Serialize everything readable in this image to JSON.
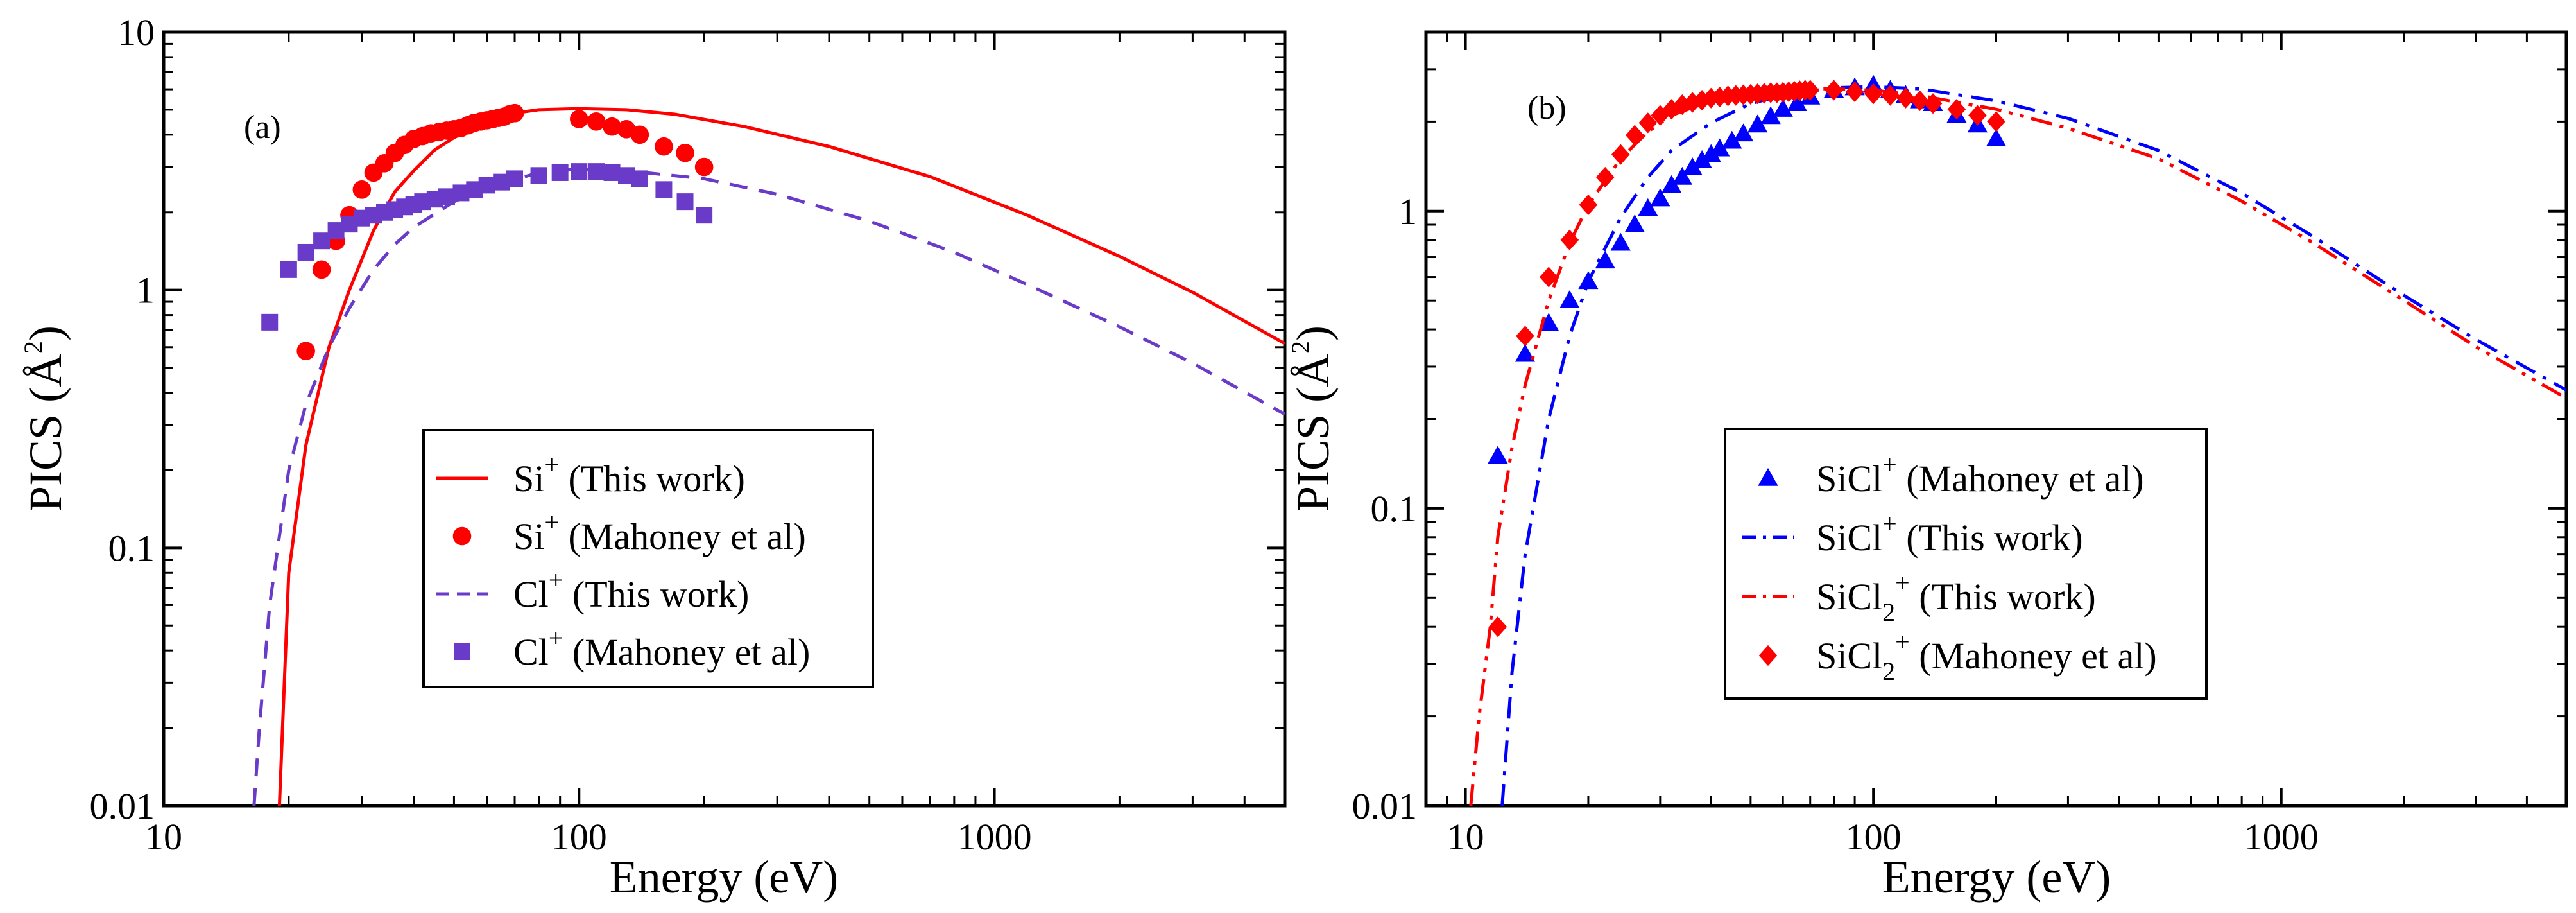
{
  "chart_data": [
    {
      "type": "line",
      "panel_label": "(a)",
      "xlabel": "Energy (eV)",
      "ylabel": "PICS (Å",
      "ylabel_sup": "2",
      "ylabel_close": ")",
      "xscale": "log",
      "yscale": "log",
      "xlim": [
        10,
        5000
      ],
      "ylim": [
        0.01,
        10
      ],
      "x_ticks": [
        10,
        100,
        1000
      ],
      "x_tick_labels": [
        "10",
        "100",
        "1000"
      ],
      "y_ticks": [
        0.01,
        0.1,
        1,
        10
      ],
      "y_tick_labels": [
        "0.01",
        "0.1",
        "1",
        "10"
      ],
      "legend_position": "center",
      "series": [
        {
          "name": "Si⁺ (This work)",
          "legend_main": "Si",
          "legend_sup": "+",
          "legend_rest": " (This work)",
          "kind": "line",
          "color": "#ff0000",
          "dash": "solid",
          "x": [
            19,
            20,
            22,
            25,
            28,
            32,
            36,
            40,
            45,
            50,
            60,
            70,
            80,
            100,
            130,
            170,
            250,
            400,
            700,
            1200,
            2000,
            3000,
            5000
          ],
          "y": [
            0.01,
            0.08,
            0.25,
            0.6,
            1.0,
            1.7,
            2.4,
            2.9,
            3.5,
            3.9,
            4.5,
            4.85,
            5.0,
            5.05,
            5.0,
            4.8,
            4.3,
            3.6,
            2.75,
            1.95,
            1.35,
            0.98,
            0.62
          ]
        },
        {
          "name": "Si⁺ (Mahoney et al)",
          "legend_main": "Si",
          "legend_sup": "+",
          "legend_rest": " (Mahoney et al)",
          "kind": "scatter",
          "marker": "circle",
          "color": "#ff0000",
          "x": [
            22,
            24,
            26,
            28,
            30,
            32,
            34,
            36,
            38,
            40,
            42,
            44,
            46,
            48,
            50,
            52,
            54,
            56,
            58,
            60,
            62,
            64,
            66,
            68,
            70,
            100,
            110,
            120,
            130,
            140,
            160,
            180,
            200
          ],
          "y": [
            0.58,
            1.2,
            1.55,
            1.95,
            2.45,
            2.85,
            3.1,
            3.4,
            3.65,
            3.85,
            3.95,
            4.05,
            4.1,
            4.15,
            4.2,
            4.25,
            4.35,
            4.45,
            4.5,
            4.55,
            4.6,
            4.65,
            4.7,
            4.8,
            4.85,
            4.6,
            4.5,
            4.3,
            4.2,
            4.0,
            3.6,
            3.4,
            3.0
          ]
        },
        {
          "name": "Cl⁺ (This work)",
          "legend_main": "Cl",
          "legend_sup": "+",
          "legend_rest": " (This work)",
          "kind": "line",
          "color": "#6a3ac8",
          "dash": "dashed",
          "x": [
            16.5,
            17,
            18,
            20,
            22,
            25,
            28,
            32,
            36,
            40,
            50,
            60,
            80,
            100,
            130,
            200,
            300,
            500,
            800,
            1200,
            2000,
            3000,
            5000
          ],
          "y": [
            0.01,
            0.02,
            0.06,
            0.2,
            0.36,
            0.6,
            0.85,
            1.2,
            1.5,
            1.75,
            2.2,
            2.5,
            2.85,
            2.95,
            2.9,
            2.7,
            2.35,
            1.85,
            1.4,
            1.05,
            0.72,
            0.52,
            0.33
          ]
        },
        {
          "name": "Cl⁺ (Mahoney et al)",
          "legend_main": "Cl",
          "legend_sup": "+",
          "legend_rest": " (Mahoney et al)",
          "kind": "scatter",
          "marker": "square",
          "color": "#6a3ac8",
          "x": [
            18,
            20,
            22,
            24,
            26,
            28,
            30,
            32,
            34,
            36,
            38,
            40,
            42,
            45,
            48,
            52,
            56,
            60,
            65,
            70,
            80,
            90,
            100,
            110,
            120,
            130,
            140,
            160,
            180,
            200
          ],
          "y": [
            0.75,
            1.2,
            1.4,
            1.55,
            1.7,
            1.8,
            1.9,
            1.95,
            2.0,
            2.05,
            2.1,
            2.15,
            2.2,
            2.25,
            2.3,
            2.38,
            2.45,
            2.55,
            2.62,
            2.7,
            2.78,
            2.85,
            2.88,
            2.88,
            2.85,
            2.78,
            2.7,
            2.45,
            2.2,
            1.95
          ]
        }
      ]
    },
    {
      "type": "line",
      "panel_label": "(b)",
      "xlabel": "Energy (eV)",
      "ylabel": "PICS (Å",
      "ylabel_sup": "2",
      "ylabel_close": ")",
      "xscale": "log",
      "yscale": "log",
      "xlim": [
        8,
        5000
      ],
      "ylim": [
        0.01,
        4
      ],
      "x_ticks": [
        10,
        100,
        1000
      ],
      "x_tick_labels": [
        "10",
        "100",
        "1000"
      ],
      "y_ticks": [
        0.01,
        0.1,
        1
      ],
      "y_tick_labels": [
        "0.01",
        "0.1",
        "1"
      ],
      "legend_position": "center",
      "series": [
        {
          "name": "SiCl⁺ (Mahoney et al)",
          "legend_main": "SiCl",
          "legend_sup": "+",
          "legend_rest": " (Mahoney et al)",
          "kind": "scatter",
          "marker": "triangle",
          "color": "#0000ff",
          "x": [
            12,
            14,
            16,
            18,
            20,
            22,
            24,
            26,
            28,
            30,
            32,
            34,
            36,
            38,
            40,
            42,
            45,
            48,
            52,
            56,
            60,
            65,
            70,
            80,
            90,
            100,
            110,
            120,
            130,
            140,
            160,
            180,
            200
          ],
          "y": [
            0.15,
            0.33,
            0.42,
            0.5,
            0.58,
            0.68,
            0.78,
            0.9,
            1.02,
            1.1,
            1.22,
            1.3,
            1.4,
            1.48,
            1.55,
            1.62,
            1.72,
            1.82,
            1.95,
            2.08,
            2.2,
            2.3,
            2.42,
            2.55,
            2.6,
            2.65,
            2.55,
            2.45,
            2.35,
            2.3,
            2.1,
            1.95,
            1.75
          ]
        },
        {
          "name": "SiCl⁺ (This work)",
          "legend_main": "SiCl",
          "legend_sup": "+",
          "legend_rest": " (This work)",
          "kind": "line",
          "color": "#0000ff",
          "dash": "dashdot",
          "x": [
            12.3,
            13,
            14,
            16,
            18,
            20,
            24,
            28,
            32,
            40,
            50,
            60,
            80,
            100,
            130,
            200,
            300,
            500,
            800,
            1200,
            2000,
            3000,
            5000
          ],
          "y": [
            0.01,
            0.028,
            0.07,
            0.2,
            0.38,
            0.58,
            0.95,
            1.3,
            1.6,
            1.98,
            2.3,
            2.45,
            2.6,
            2.62,
            2.58,
            2.35,
            2.05,
            1.6,
            1.15,
            0.82,
            0.52,
            0.37,
            0.25
          ]
        },
        {
          "name": "SiCl₂⁺ (This work)",
          "legend_main": "SiCl",
          "legend_sub": "2",
          "legend_sup": "+",
          "legend_rest": " (This work)",
          "kind": "line",
          "color": "#ff0000",
          "dash": "dashdotdot",
          "x": [
            10.3,
            10.8,
            11.5,
            12,
            13,
            14,
            16,
            18,
            20,
            24,
            28,
            32,
            40,
            50,
            60,
            70,
            80,
            100,
            130,
            200,
            300,
            500,
            800,
            1200,
            2000,
            3000,
            5000
          ],
          "y": [
            0.01,
            0.02,
            0.04,
            0.08,
            0.16,
            0.26,
            0.5,
            0.78,
            1.05,
            1.5,
            1.85,
            2.1,
            2.35,
            2.5,
            2.55,
            2.58,
            2.58,
            2.55,
            2.45,
            2.2,
            1.9,
            1.5,
            1.08,
            0.78,
            0.5,
            0.35,
            0.235
          ]
        },
        {
          "name": "SiCl₂⁺ (Mahoney et al)",
          "legend_main": "SiCl",
          "legend_sub": "2",
          "legend_sup": "+",
          "legend_rest": " (Mahoney et al)",
          "kind": "scatter",
          "marker": "diamond",
          "color": "#ff0000",
          "x": [
            12,
            14,
            16,
            18,
            20,
            22,
            24,
            26,
            28,
            30,
            32,
            34,
            36,
            38,
            40,
            42,
            44,
            46,
            48,
            50,
            52,
            54,
            56,
            58,
            60,
            62,
            64,
            66,
            68,
            70,
            80,
            90,
            100,
            110,
            120,
            130,
            140,
            160,
            180,
            200
          ],
          "y": [
            0.04,
            0.38,
            0.6,
            0.8,
            1.05,
            1.3,
            1.55,
            1.8,
            1.98,
            2.1,
            2.2,
            2.28,
            2.32,
            2.36,
            2.4,
            2.42,
            2.44,
            2.45,
            2.46,
            2.47,
            2.48,
            2.49,
            2.5,
            2.5,
            2.51,
            2.52,
            2.53,
            2.54,
            2.55,
            2.55,
            2.55,
            2.52,
            2.48,
            2.45,
            2.4,
            2.35,
            2.3,
            2.2,
            2.1,
            2.0
          ]
        }
      ]
    }
  ]
}
